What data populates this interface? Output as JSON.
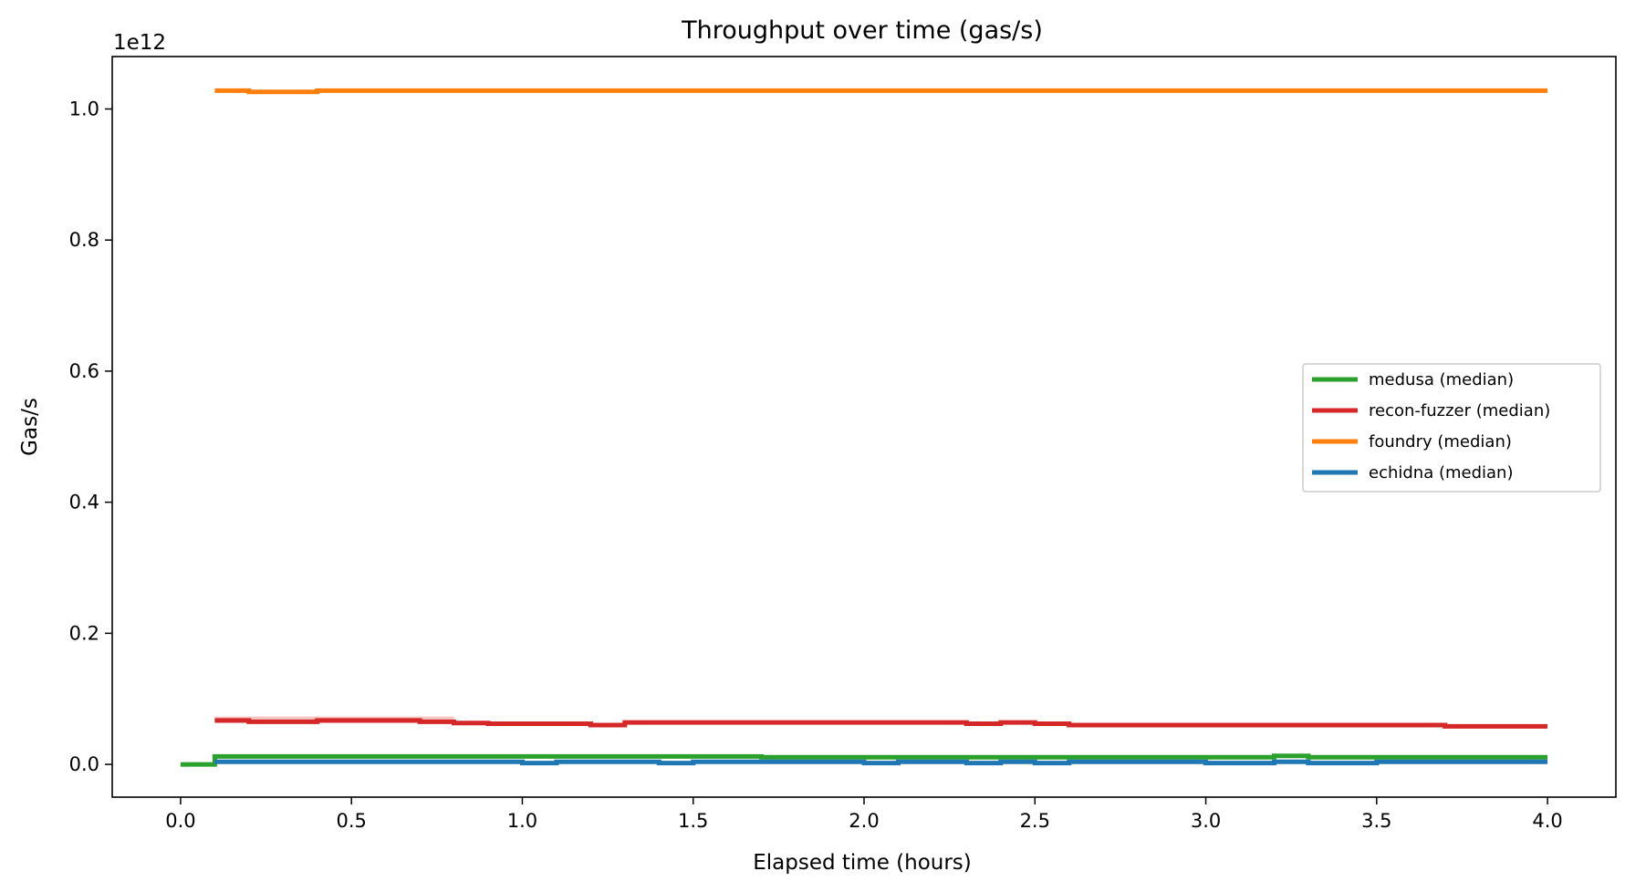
{
  "chart_data": {
    "type": "line",
    "title": "Throughput over time (gas/s)",
    "xlabel": "Elapsed time (hours)",
    "ylabel": "Gas/s",
    "y_offset_label": "1e12",
    "xlim": [
      -0.2,
      4.2
    ],
    "ylim": [
      -0.05,
      1.08
    ],
    "y_scale_note": "values in units of 1e12 gas/s",
    "x_ticks": [
      0.0,
      0.5,
      1.0,
      1.5,
      2.0,
      2.5,
      3.0,
      3.5,
      4.0
    ],
    "x_tick_labels": [
      "0.0",
      "0.5",
      "1.0",
      "1.5",
      "2.0",
      "2.5",
      "3.0",
      "3.5",
      "4.0"
    ],
    "y_ticks": [
      0.0,
      0.2,
      0.4,
      0.6,
      0.8,
      1.0
    ],
    "y_tick_labels": [
      "0.0",
      "0.2",
      "0.4",
      "0.6",
      "0.8",
      "1.0"
    ],
    "grid": false,
    "legend_position": "center-right",
    "series": [
      {
        "name": "medusa (median)",
        "color": "#2ca02c",
        "x": [
          0.0,
          0.1,
          0.1,
          1.7,
          1.7,
          3.2,
          3.2,
          3.3,
          3.3,
          4.0
        ],
        "y": [
          0.0,
          0.0,
          0.012,
          0.012,
          0.011,
          0.011,
          0.013,
          0.013,
          0.011,
          0.011
        ]
      },
      {
        "name": "recon-fuzzer (median)",
        "color": "#d62728",
        "band_color": "#f4b6b6",
        "band_x": [
          0.1,
          0.8
        ],
        "band_lower": 0.063,
        "band_upper": 0.073,
        "x": [
          0.1,
          0.2,
          0.2,
          0.4,
          0.4,
          0.7,
          0.7,
          0.8,
          0.8,
          0.9,
          0.9,
          1.2,
          1.2,
          1.3,
          1.3,
          2.3,
          2.3,
          2.4,
          2.4,
          2.5,
          2.5,
          2.6,
          2.6,
          3.7,
          3.7,
          4.0
        ],
        "y": [
          0.067,
          0.067,
          0.065,
          0.065,
          0.067,
          0.067,
          0.065,
          0.065,
          0.063,
          0.063,
          0.062,
          0.062,
          0.06,
          0.06,
          0.064,
          0.064,
          0.062,
          0.062,
          0.064,
          0.064,
          0.062,
          0.062,
          0.06,
          0.06,
          0.058,
          0.058
        ]
      },
      {
        "name": "foundry (median)",
        "color": "#ff7f0e",
        "x": [
          0.1,
          0.2,
          0.2,
          0.4,
          0.4,
          4.0
        ],
        "y": [
          1.028,
          1.028,
          1.026,
          1.026,
          1.028,
          1.028
        ]
      },
      {
        "name": "echidna (median)",
        "color": "#1f77b4",
        "x": [
          0.1,
          1.0,
          1.0,
          1.1,
          1.1,
          1.4,
          1.4,
          1.5,
          1.5,
          2.0,
          2.0,
          2.1,
          2.1,
          2.3,
          2.3,
          2.4,
          2.4,
          2.5,
          2.5,
          2.6,
          2.6,
          3.0,
          3.0,
          3.2,
          3.2,
          3.3,
          3.3,
          3.5,
          3.5,
          4.0
        ],
        "y": [
          0.004,
          0.004,
          0.002,
          0.002,
          0.004,
          0.004,
          0.002,
          0.002,
          0.004,
          0.004,
          0.002,
          0.002,
          0.004,
          0.004,
          0.002,
          0.002,
          0.004,
          0.004,
          0.002,
          0.002,
          0.004,
          0.004,
          0.002,
          0.002,
          0.004,
          0.004,
          0.002,
          0.002,
          0.004,
          0.004
        ]
      }
    ]
  }
}
